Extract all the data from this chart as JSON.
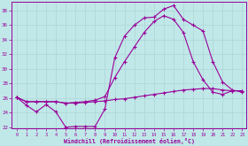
{
  "xlabel": "Windchill (Refroidissement éolien,°C)",
  "xlim_min": -0.5,
  "xlim_max": 23.4,
  "ylim_min": 21.8,
  "ylim_max": 39.2,
  "xticks": [
    0,
    1,
    2,
    3,
    4,
    5,
    6,
    7,
    8,
    9,
    10,
    11,
    12,
    13,
    14,
    15,
    16,
    17,
    18,
    19,
    20,
    21,
    22,
    23
  ],
  "yticks": [
    22,
    24,
    26,
    28,
    30,
    32,
    34,
    36,
    38
  ],
  "bg_color": "#c0e8e8",
  "line_color": "#990099",
  "grid_color": "#b0d8d8",
  "line1_x": [
    0,
    1,
    2,
    3,
    4,
    5,
    6,
    7,
    8,
    9,
    10,
    11,
    12,
    13,
    14,
    15,
    16,
    17,
    18,
    19,
    20,
    21,
    22,
    23
  ],
  "line1_y": [
    26.1,
    25.0,
    24.1,
    25.1,
    24.1,
    22.0,
    22.1,
    22.1,
    22.1,
    24.5,
    31.5,
    34.5,
    36.0,
    37.0,
    37.1,
    38.2,
    38.7,
    36.8,
    36.0,
    35.2,
    31.0,
    28.2,
    27.1,
    26.8
  ],
  "line2_x": [
    0,
    1,
    2,
    3,
    4,
    5,
    6,
    7,
    8,
    9,
    10,
    11,
    12,
    13,
    14,
    15,
    16,
    17,
    18,
    19,
    20,
    21,
    22,
    23
  ],
  "line2_y": [
    26.1,
    25.5,
    25.5,
    25.5,
    25.5,
    25.3,
    25.3,
    25.4,
    25.5,
    25.6,
    25.8,
    25.9,
    26.1,
    26.3,
    26.5,
    26.7,
    26.9,
    27.1,
    27.2,
    27.3,
    27.3,
    27.1,
    27.0,
    27.0
  ],
  "line3_x": [
    0,
    1,
    2,
    3,
    4,
    5,
    6,
    7,
    8,
    9,
    10,
    11,
    12,
    13,
    14,
    15,
    16,
    17,
    18,
    19,
    20,
    21,
    22,
    23
  ],
  "line3_y": [
    26.1,
    25.5,
    25.5,
    25.5,
    25.5,
    25.3,
    25.4,
    25.5,
    25.7,
    26.2,
    28.8,
    31.0,
    33.0,
    35.0,
    36.5,
    37.3,
    36.8,
    35.0,
    31.0,
    28.5,
    26.8,
    26.5,
    27.0,
    27.0
  ]
}
